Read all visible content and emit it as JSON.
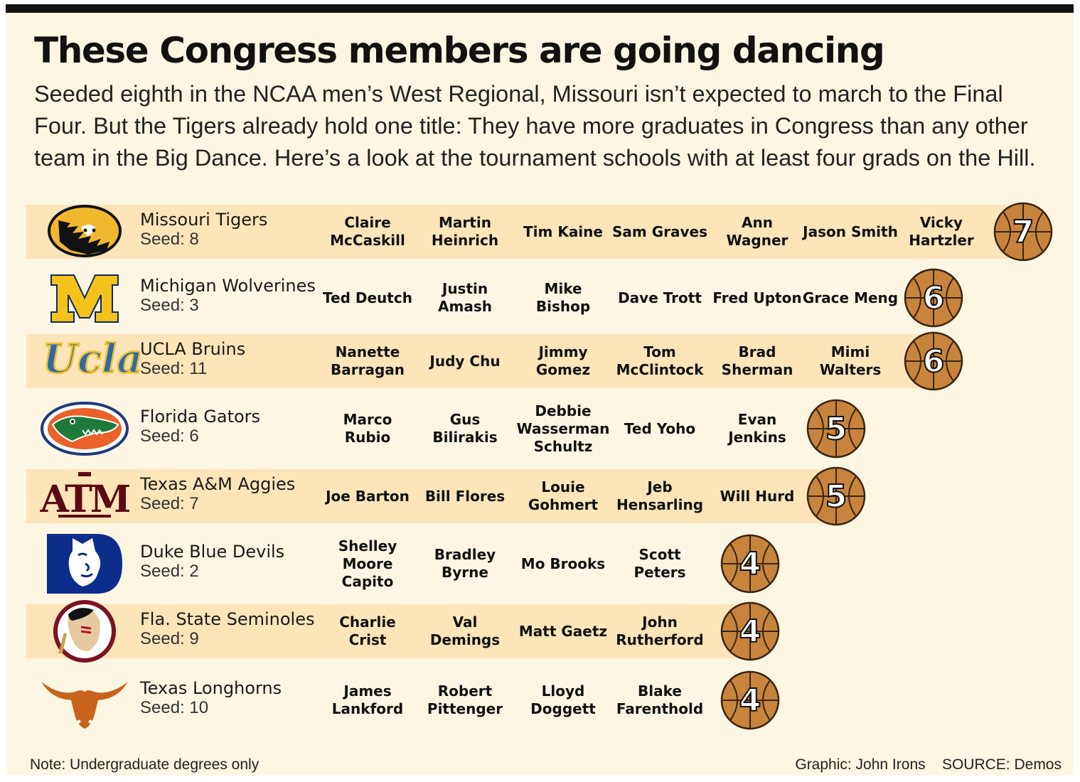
{
  "header": {
    "title": "These Congress members are going dancing",
    "subtitle": "Seeded eighth in the NCAA men’s West Regional, Missouri isn’t expected to march to the Final Four. But the Tigers already hold one title: They have more graduates in Congress than any other team in the Big Dance. Here’s a look at the tournament schools with at least four grads on the Hill."
  },
  "colors": {
    "panel_background": "#fdf6e3",
    "row_shade": "#fde4b9",
    "basketball": "#c8843c",
    "basketball_lines": "#3a2410"
  },
  "chart_data": {
    "type": "table",
    "rows": [
      {
        "team": "Missouri Tigers",
        "seed_label": "Seed: 8",
        "logo": "missouri-tiger-logo",
        "members": [
          "Claire McCaskill",
          "Martin Heinrich",
          "Tim Kaine",
          "Sam Graves",
          "Ann Wagner",
          "Jason Smith",
          "Vicky Hartzler"
        ],
        "count": 7
      },
      {
        "team": "Michigan Wolverines",
        "seed_label": "Seed: 3",
        "logo": "michigan-block-m-logo",
        "members": [
          "Ted Deutch",
          "Justin Amash",
          "Mike Bishop",
          "Dave Trott",
          "Fred Upton",
          "Grace Meng"
        ],
        "count": 6
      },
      {
        "team": "UCLA Bruins",
        "seed_label": "Seed: 11",
        "logo": "ucla-script-logo",
        "members": [
          "Nanette Barragan",
          "Judy Chu",
          "Jimmy Gomez",
          "Tom McClintock",
          "Brad Sherman",
          "Mimi Walters"
        ],
        "count": 6
      },
      {
        "team": "Florida Gators",
        "seed_label": "Seed: 6",
        "logo": "florida-gator-logo",
        "members": [
          "Marco Rubio",
          "Gus Bilirakis",
          "Debbie Wasserman Schultz",
          "Ted Yoho",
          "Evan Jenkins"
        ],
        "count": 5
      },
      {
        "team": "Texas A&M Aggies",
        "seed_label": "Seed: 7",
        "logo": "texas-am-logo",
        "members": [
          "Joe Barton",
          "Bill Flores",
          "Louie Gohmert",
          "Jeb Hensarling",
          "Will Hurd"
        ],
        "count": 5
      },
      {
        "team": "Duke Blue Devils",
        "seed_label": "Seed: 2",
        "logo": "duke-blue-devil-logo",
        "members": [
          "Shelley Moore Capito",
          "Bradley Byrne",
          "Mo Brooks",
          "Scott Peters"
        ],
        "count": 4
      },
      {
        "team": "Fla. State Seminoles",
        "seed_label": "Seed: 9",
        "logo": "fsu-seminole-logo",
        "members": [
          "Charlie Crist",
          "Val Demings",
          "Matt Gaetz",
          "John Rutherford"
        ],
        "count": 4
      },
      {
        "team": "Texas Longhorns",
        "seed_label": "Seed: 10",
        "logo": "texas-longhorn-logo",
        "members": [
          "James Lankford",
          "Robert Pittenger",
          "Lloyd Doggett",
          "Blake Farenthold"
        ],
        "count": 4
      }
    ]
  },
  "footer": {
    "note": "Note: Undergraduate degrees only",
    "credit": "Graphic: John Irons    SOURCE: Demos"
  }
}
